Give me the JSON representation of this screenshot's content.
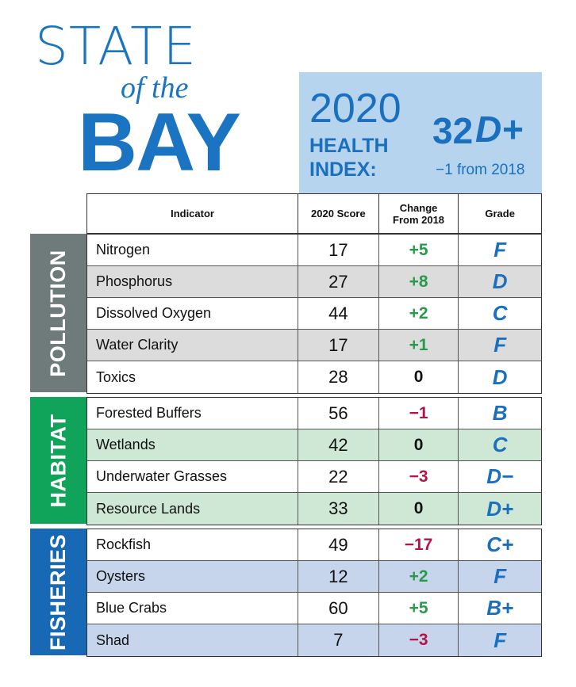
{
  "title": {
    "line1": "STATE",
    "line2": "of the",
    "line3": "BAY"
  },
  "health_index": {
    "year": "2020",
    "label_line1": "HEALTH",
    "label_line2": "INDEX:",
    "score": "32",
    "grade": "D+",
    "change": "−1 from 2018"
  },
  "table": {
    "headers": {
      "indicator": "Indicator",
      "score": "2020 Score",
      "change_line1": "Change",
      "change_line2": "From 2018",
      "grade": "Grade"
    },
    "groups": [
      {
        "name": "POLLUTION",
        "color": "#6f7a7a",
        "alt_row_color": "#dcdcdc",
        "rows": [
          {
            "indicator": "Nitrogen",
            "score": "17",
            "change": "+5",
            "sign": "pos",
            "grade": "F"
          },
          {
            "indicator": "Phosphorus",
            "score": "27",
            "change": "+8",
            "sign": "pos",
            "grade": "D"
          },
          {
            "indicator": "Dissolved Oxygen",
            "score": "44",
            "change": "+2",
            "sign": "pos",
            "grade": "C"
          },
          {
            "indicator": "Water Clarity",
            "score": "17",
            "change": "+1",
            "sign": "pos",
            "grade": "F"
          },
          {
            "indicator": "Toxics",
            "score": "28",
            "change": "0",
            "sign": "zero",
            "grade": "D"
          }
        ]
      },
      {
        "name": "HABITAT",
        "color": "#0fa45a",
        "alt_row_color": "#cfe8d5",
        "rows": [
          {
            "indicator": "Forested Buffers",
            "score": "56",
            "change": "−1",
            "sign": "neg",
            "grade": "B"
          },
          {
            "indicator": "Wetlands",
            "score": "42",
            "change": "0",
            "sign": "zero",
            "grade": "C"
          },
          {
            "indicator": "Underwater Grasses",
            "score": "22",
            "change": "−3",
            "sign": "neg",
            "grade": "D−"
          },
          {
            "indicator": "Resource Lands",
            "score": "33",
            "change": "0",
            "sign": "zero",
            "grade": "D+"
          }
        ]
      },
      {
        "name": "FISHERIES",
        "color": "#1769b5",
        "alt_row_color": "#c7d5ec",
        "rows": [
          {
            "indicator": "Rockfish",
            "score": "49",
            "change": "−17",
            "sign": "neg",
            "grade": "C+"
          },
          {
            "indicator": "Oysters",
            "score": "12",
            "change": "+2",
            "sign": "pos",
            "grade": "F"
          },
          {
            "indicator": "Blue Crabs",
            "score": "60",
            "change": "+5",
            "sign": "pos",
            "grade": "B+"
          },
          {
            "indicator": "Shad",
            "score": "7",
            "change": "−3",
            "sign": "neg",
            "grade": "F"
          }
        ]
      }
    ]
  }
}
